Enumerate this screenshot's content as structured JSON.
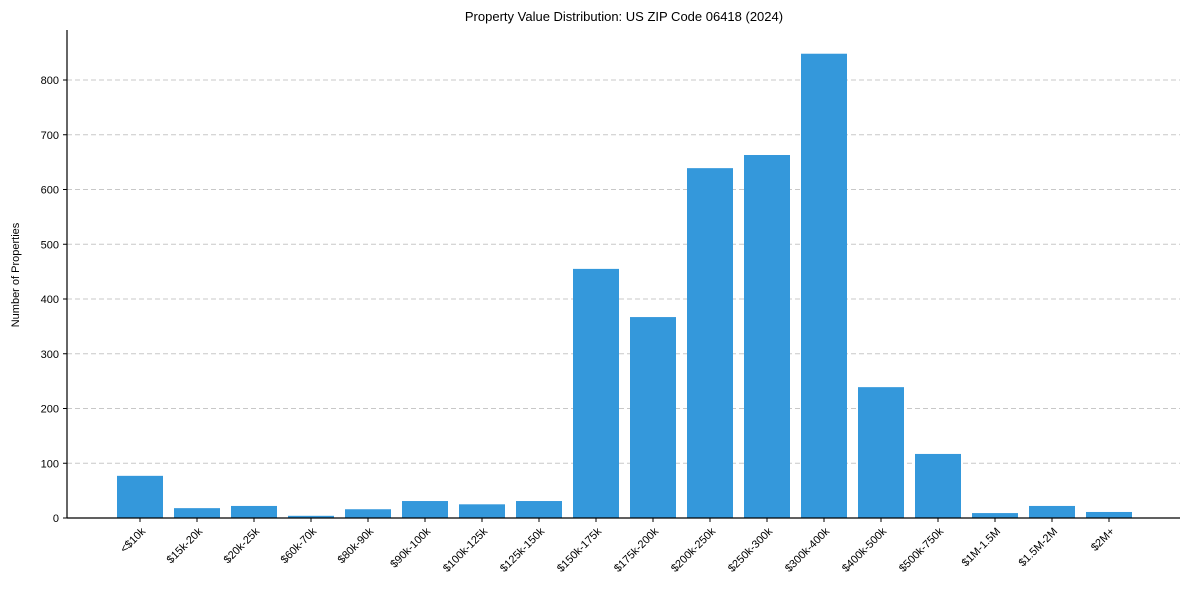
{
  "chart_data": {
    "type": "bar",
    "title": "Property Value Distribution: US ZIP Code 06418 (2024)",
    "xlabel": "",
    "ylabel": "Number of Properties",
    "ylim": [
      0,
      890
    ],
    "yticks": [
      0,
      100,
      200,
      300,
      400,
      500,
      600,
      700,
      800
    ],
    "grid": {
      "axis": "y",
      "style": "dashed"
    },
    "bar_color": "#3498db",
    "categories": [
      "<$10k",
      "$15k-20k",
      "$20k-25k",
      "$60k-70k",
      "$80k-90k",
      "$90k-100k",
      "$100k-125k",
      "$125k-150k",
      "$150k-175k",
      "$175k-200k",
      "$200k-250k",
      "$250k-300k",
      "$300k-400k",
      "$400k-500k",
      "$500k-750k",
      "$1M-1.5M",
      "$1.5M-2M",
      "$2M+"
    ],
    "values": [
      77,
      18,
      22,
      4,
      16,
      31,
      25,
      31,
      455,
      367,
      639,
      663,
      848,
      239,
      117,
      9,
      22,
      11
    ]
  }
}
